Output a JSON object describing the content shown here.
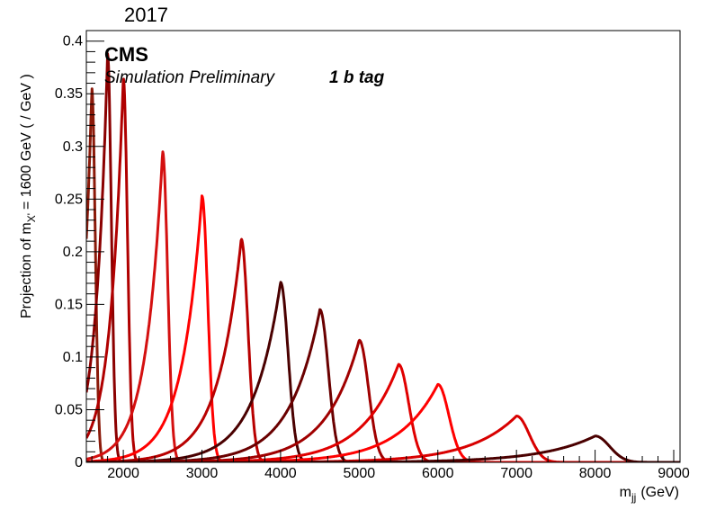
{
  "chart_data": {
    "type": "line",
    "year_label": "2017",
    "experiment": "CMS",
    "status": "Simulation Preliminary",
    "category": "1 b tag",
    "xlabel_main": "m",
    "xlabel_sub": "jj",
    "xlabel_unit": "(GeV)",
    "ylabel_pre": "Projection of m",
    "ylabel_sub": "X'",
    "ylabel_post": "= 1600 GeV ( / GeV )",
    "xlim": [
      1530,
      9080
    ],
    "ylim": [
      0,
      0.41
    ],
    "x_ticks": [
      2000,
      3000,
      4000,
      5000,
      6000,
      7000,
      8000,
      9000
    ],
    "x_tick_labels": [
      "2000",
      "3000",
      "4000",
      "5000",
      "6000",
      "7000",
      "8000",
      "9000"
    ],
    "y_ticks": [
      0,
      0.05,
      0.1,
      0.15,
      0.2,
      0.25,
      0.3,
      0.35,
      0.4
    ],
    "y_tick_labels": [
      "0",
      "0.05",
      "0.1",
      "0.15",
      "0.2",
      "0.25",
      "0.3",
      "0.35",
      "0.4"
    ],
    "grid": false,
    "series": [
      {
        "mass": 1600,
        "peak": 0.355,
        "color": "#8b1a0a"
      },
      {
        "mass": 1800,
        "peak": 0.388,
        "color": "#8b0000"
      },
      {
        "mass": 2000,
        "peak": 0.365,
        "color": "#b00000"
      },
      {
        "mass": 2500,
        "peak": 0.295,
        "color": "#d41010"
      },
      {
        "mass": 3000,
        "peak": 0.253,
        "color": "#ff0000"
      },
      {
        "mass": 3500,
        "peak": 0.212,
        "color": "#b80000"
      },
      {
        "mass": 4000,
        "peak": 0.171,
        "color": "#4a0000"
      },
      {
        "mass": 4500,
        "peak": 0.145,
        "color": "#6a0000"
      },
      {
        "mass": 5000,
        "peak": 0.116,
        "color": "#a00000"
      },
      {
        "mass": 5500,
        "peak": 0.093,
        "color": "#e00000"
      },
      {
        "mass": 6000,
        "peak": 0.074,
        "color": "#ff0000"
      },
      {
        "mass": 7000,
        "peak": 0.044,
        "color": "#d80000"
      },
      {
        "mass": 8000,
        "peak": 0.025,
        "color": "#4a0000"
      }
    ]
  }
}
